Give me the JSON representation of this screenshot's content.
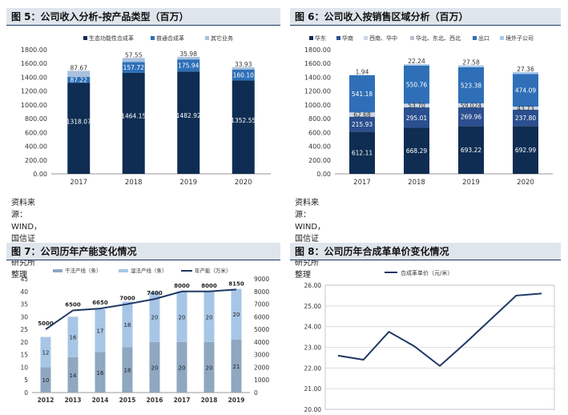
{
  "panels": [
    {
      "title": "图 5：公司收入分析-按产品类型（百万）",
      "source": "资料来源：WIND，国信证券经济研究所整理"
    },
    {
      "title": "图 6：公司收入按销售区域分析（百万）",
      "source": "资料来源：WIND，国信证券经济研究所整理"
    },
    {
      "title": "图 7：公司历年产能变化情况",
      "source": ""
    },
    {
      "title": "图 8：公司历年合成革单价变化情况",
      "source": ""
    }
  ],
  "colors": {
    "navy": "#0f2d52",
    "blue": "#2e6fb8",
    "light": "#a9c1dd",
    "grey": "#9aa8b8",
    "cap_a": "#8fa7c0",
    "cap_b": "#a7c6e6",
    "line": "#203864"
  },
  "chart_data": [
    {
      "type": "bar",
      "stacked": true,
      "categories": [
        "2017",
        "2018",
        "2019",
        "2020"
      ],
      "series": [
        {
          "name": "生态功能性合成革",
          "values": [
            1318.07,
            1464.15,
            1482.92,
            1352.55
          ]
        },
        {
          "name": "普通合成革",
          "values": [
            87.22,
            157.72,
            175.94,
            160.1
          ]
        },
        {
          "name": "其它业务",
          "values": [
            87.67,
            57.55,
            35.98,
            33.93
          ]
        }
      ],
      "yticks": [
        "0.00",
        "200.00",
        "400.00",
        "600.00",
        "800.00",
        "1000.00",
        "1200.00",
        "1400.00",
        "1600.00",
        "1800.00"
      ],
      "ylim": [
        0,
        1800
      ],
      "legend": "top"
    },
    {
      "type": "bar",
      "stacked": true,
      "categories": [
        "2017",
        "2018",
        "2019",
        "2020"
      ],
      "series": [
        {
          "name": "华东",
          "values": [
            612.11,
            668.29,
            693.22,
            692.99
          ]
        },
        {
          "name": "华南",
          "values": [
            215.93,
            295.01,
            269.96,
            237.8
          ]
        },
        {
          "name": "西南、华中",
          "values": [
            62.68,
            53.7,
            59.02,
            43.73
          ]
        },
        {
          "name": "华北、东北、西北",
          "values": [
            0,
            0,
            0,
            0
          ]
        },
        {
          "name": "出口",
          "values": [
            541.18,
            550.76,
            523.38,
            474.09
          ]
        },
        {
          "name": "境外子公司",
          "values": [
            1.94,
            22.24,
            27.58,
            27.36
          ]
        }
      ],
      "labels": [
        [
          "612.11",
          "215.93",
          "62.68",
          "541.18",
          "1.94"
        ],
        [
          "668.29",
          "295.01",
          "53.70",
          "550.76",
          "22.24"
        ],
        [
          "693.22",
          "269.96",
          "59.024",
          "523.38",
          "27.58"
        ],
        [
          "692.99",
          "237.80",
          "43.73",
          "474.09",
          "27.36"
        ]
      ],
      "yticks": [
        "0.00",
        "200.00",
        "400.00",
        "600.00",
        "800.00",
        "1000.00",
        "1200.00",
        "1400.00",
        "1600.00",
        "1800.00"
      ],
      "ylim": [
        0,
        1800
      ],
      "legend": "top"
    },
    {
      "type": "bar",
      "stacked": true,
      "categories": [
        "2012",
        "2013",
        "2014",
        "2015",
        "2016",
        "2017",
        "2018",
        "2019"
      ],
      "series": [
        {
          "name": "干法产线（条）",
          "values": [
            10,
            14,
            16,
            18,
            20,
            20,
            20,
            21
          ]
        },
        {
          "name": "湿法产线（条）",
          "values": [
            12,
            16,
            17,
            18,
            20,
            20,
            20,
            20
          ]
        },
        {
          "name": "年产能（万米）",
          "type": "line",
          "axis": "right",
          "values": [
            5000,
            6500,
            6650,
            7000,
            7400,
            8000,
            8000,
            8150
          ]
        }
      ],
      "yticks_left": [
        "0",
        "5",
        "10",
        "15",
        "20",
        "25",
        "30",
        "35",
        "40",
        "45"
      ],
      "yticks_right": [
        "0",
        "1000",
        "2000",
        "3000",
        "4000",
        "5000",
        "6000",
        "7000",
        "8000",
        "9000"
      ],
      "ylim_left": [
        0,
        45
      ],
      "ylim_right": [
        0,
        9000
      ],
      "legend": "top"
    },
    {
      "type": "line",
      "series": [
        {
          "name": "合成革单价（元/米）",
          "values": [
            22.6,
            22.4,
            23.75,
            23.05,
            22.1,
            23.2,
            24.35,
            25.5,
            25.6
          ]
        }
      ],
      "yticks": [
        "20.00",
        "21.00",
        "22.00",
        "23.00",
        "24.00",
        "25.00",
        "26.00"
      ],
      "ylim": [
        20,
        26
      ],
      "grid": true,
      "legend": "top"
    }
  ]
}
